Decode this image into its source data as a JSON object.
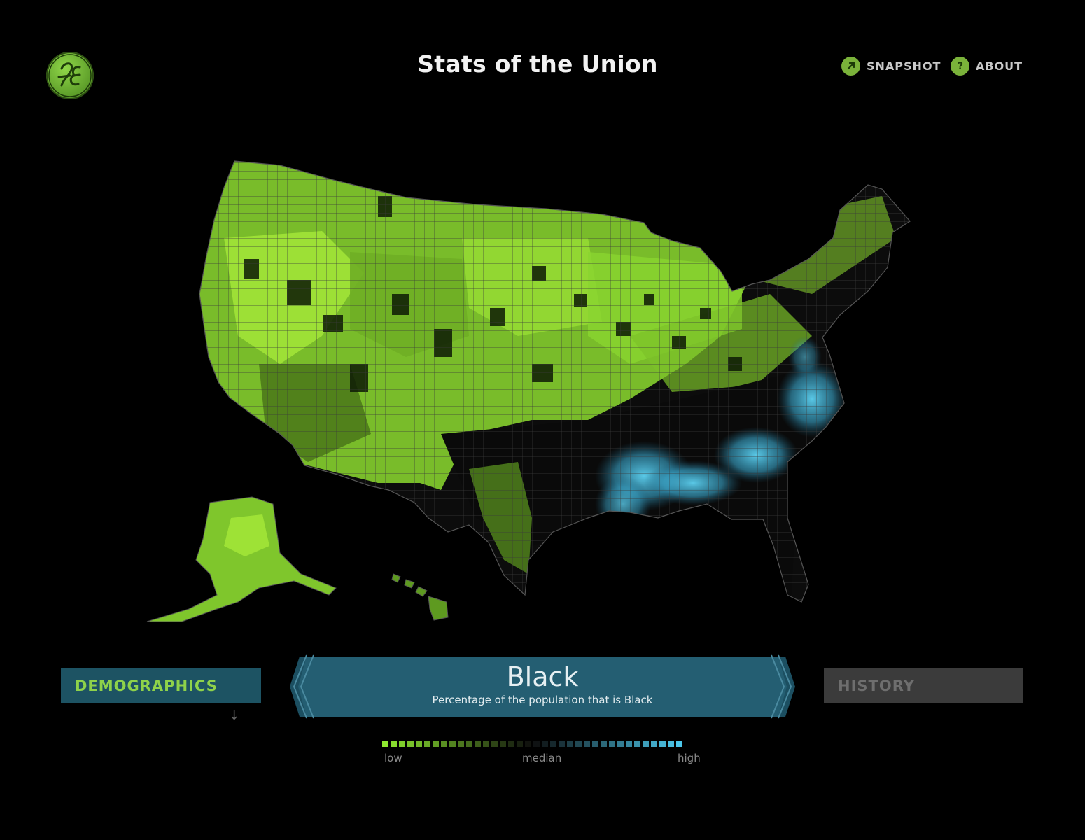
{
  "header": {
    "title": "Stats of the Union",
    "logo_text": "GE",
    "nav": [
      {
        "label": "SNAPSHOT",
        "icon": "arrow-up-right-icon"
      },
      {
        "label": "ABOUT",
        "icon": "question-icon"
      }
    ]
  },
  "categories": {
    "left": "DEMOGRAPHICS",
    "right": "HISTORY"
  },
  "metric": {
    "title": "Black",
    "description": "Percentage of the population that is Black"
  },
  "legend": {
    "low": "low",
    "median": "median",
    "high": "high"
  },
  "colors": {
    "low": "#8ee830",
    "median": "#0d0d0d",
    "high": "#4cc8ec",
    "panel": "#1d5363",
    "accent": "#7ab23a"
  }
}
